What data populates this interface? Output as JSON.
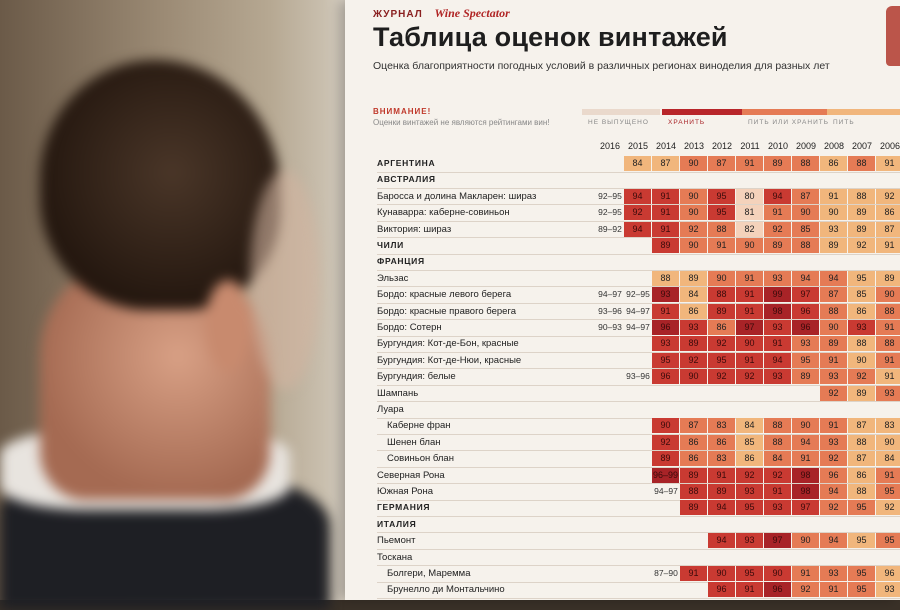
{
  "poster": {
    "header": "ЖУРНАЛ",
    "brand": "Wine Spectator",
    "title": "Таблица оценок винтажей",
    "subtitle": "Оценка благоприятности погодных условий в различных регионах виноделия для разных лет",
    "warning_title": "ВНИМАНИЕ!",
    "warning_note": "Оценки винтажей не являются рейтингами вин!",
    "legend": [
      {
        "label": "НЕ ВЫПУЩЕНО",
        "color": "#ead9cc"
      },
      {
        "label": "ХРАНИТЬ",
        "color": "#b8262a"
      },
      {
        "label": "ПИТЬ ИЛИ ХРАНИТЬ",
        "color": "#e57b55"
      },
      {
        "label": "ПИТЬ",
        "color": "#f1b67c"
      }
    ]
  },
  "colors": {
    "store": "#c93a32",
    "store_dark": "#a82327",
    "mixed": "#e57b55",
    "drink": "#f1b67c",
    "light": "#f4d2bb"
  },
  "table": {
    "years": [
      "2016",
      "2015",
      "2014",
      "2013",
      "2012",
      "2011",
      "2010",
      "2009",
      "2008",
      "2007",
      "2006",
      "20"
    ],
    "rows": [
      {
        "label": "АРГЕНТИНА",
        "type": "section",
        "cells": [
          "",
          "84",
          "87",
          "90",
          "87",
          "91",
          "89",
          "88",
          "86",
          "88",
          "91",
          "9"
        ],
        "tones": [
          "",
          "d",
          "d",
          "m",
          "m",
          "m",
          "m",
          "m",
          "d",
          "m",
          "d",
          "d"
        ]
      },
      {
        "label": "АВСТРАЛИЯ",
        "type": "section",
        "cells": [],
        "tones": []
      },
      {
        "label": "Баросса и долина Макларен: шираз",
        "type": "item",
        "cells": [
          "92–95",
          "94",
          "91",
          "90",
          "95",
          "80",
          "94",
          "87",
          "91",
          "88",
          "92",
          "9"
        ],
        "tones": [
          "",
          "s",
          "s",
          "m",
          "s",
          "l",
          "s",
          "m",
          "d",
          "d",
          "d",
          "d"
        ]
      },
      {
        "label": "Кунаварра: каберне-совиньон",
        "type": "item",
        "cells": [
          "92–95",
          "92",
          "91",
          "90",
          "95",
          "81",
          "91",
          "90",
          "90",
          "89",
          "86",
          "9"
        ],
        "tones": [
          "",
          "s",
          "s",
          "m",
          "s",
          "l",
          "m",
          "m",
          "d",
          "d",
          "d",
          "d"
        ]
      },
      {
        "label": "Виктория: шираз",
        "type": "item",
        "cells": [
          "89–92",
          "94",
          "91",
          "92",
          "88",
          "82",
          "92",
          "85",
          "93",
          "89",
          "87",
          "9"
        ],
        "tones": [
          "",
          "s",
          "s",
          "m",
          "m",
          "l",
          "m",
          "m",
          "d",
          "d",
          "d",
          "d"
        ]
      },
      {
        "label": "ЧИЛИ",
        "type": "section",
        "cells": [
          "",
          "",
          "89",
          "90",
          "91",
          "90",
          "89",
          "88",
          "89",
          "92",
          "91",
          "9"
        ],
        "tones": [
          "",
          "",
          "s",
          "m",
          "m",
          "m",
          "m",
          "m",
          "d",
          "d",
          "d",
          "d"
        ]
      },
      {
        "label": "ФРАНЦИЯ",
        "type": "section",
        "cells": [],
        "tones": []
      },
      {
        "label": "Эльзас",
        "type": "item",
        "cells": [
          "",
          "",
          "88",
          "89",
          "90",
          "91",
          "93",
          "94",
          "94",
          "95",
          "89",
          ""
        ],
        "tones": [
          "",
          "",
          "d",
          "d",
          "m",
          "m",
          "m",
          "m",
          "m",
          "d",
          "d",
          ""
        ]
      },
      {
        "label": "Бордо: красные левого берега",
        "type": "item",
        "cells": [
          "94–97",
          "92–95",
          "93",
          "84",
          "88",
          "91",
          "99",
          "97",
          "87",
          "85",
          "90",
          "9"
        ],
        "tones": [
          "",
          "",
          "x",
          "d",
          "s",
          "s",
          "x",
          "s",
          "m",
          "d",
          "m",
          "m"
        ]
      },
      {
        "label": "Бордо: красные правого берега",
        "type": "item",
        "cells": [
          "93–96",
          "94–97",
          "91",
          "86",
          "89",
          "91",
          "98",
          "96",
          "88",
          "86",
          "88",
          "9"
        ],
        "tones": [
          "",
          "",
          "s",
          "d",
          "s",
          "s",
          "x",
          "s",
          "m",
          "d",
          "m",
          "m"
        ]
      },
      {
        "label": "Бордо: Сотерн",
        "type": "item",
        "cells": [
          "90–93",
          "94–97",
          "96",
          "93",
          "86",
          "97",
          "93",
          "96",
          "90",
          "93",
          "91",
          "9"
        ],
        "tones": [
          "",
          "",
          "x",
          "s",
          "m",
          "x",
          "s",
          "x",
          "m",
          "s",
          "m",
          "m"
        ]
      },
      {
        "label": "Бургундия: Кот-де-Бон, красные",
        "type": "item",
        "cells": [
          "",
          "",
          "93",
          "89",
          "92",
          "90",
          "91",
          "93",
          "89",
          "88",
          "88",
          "9"
        ],
        "tones": [
          "",
          "",
          "s",
          "s",
          "s",
          "s",
          "s",
          "m",
          "m",
          "d",
          "m",
          "m"
        ]
      },
      {
        "label": "Бургундия: Кот-де-Нюи, красные",
        "type": "item",
        "cells": [
          "",
          "",
          "95",
          "92",
          "95",
          "91",
          "94",
          "95",
          "91",
          "90",
          "91",
          "9"
        ],
        "tones": [
          "",
          "",
          "s",
          "s",
          "s",
          "s",
          "s",
          "m",
          "m",
          "d",
          "m",
          "m"
        ]
      },
      {
        "label": "Бургундия: белые",
        "type": "item",
        "cells": [
          "",
          "93–96",
          "96",
          "90",
          "92",
          "92",
          "93",
          "89",
          "93",
          "92",
          "91",
          "9"
        ],
        "tones": [
          "",
          "",
          "s",
          "s",
          "s",
          "s",
          "s",
          "m",
          "m",
          "m",
          "d",
          "m"
        ]
      },
      {
        "label": "Шампань",
        "type": "item",
        "cells": [
          "",
          "",
          "",
          "",
          "",
          "",
          "",
          "",
          "92",
          "89",
          "93",
          "9"
        ],
        "tones": [
          "",
          "",
          "",
          "",
          "",
          "",
          "",
          "",
          "m",
          "d",
          "m",
          "m"
        ]
      },
      {
        "label": "Луара",
        "type": "item",
        "cells": [],
        "tones": []
      },
      {
        "label": "Каберне фран",
        "type": "sub",
        "cells": [
          "",
          "",
          "90",
          "87",
          "83",
          "84",
          "88",
          "90",
          "91",
          "87",
          "83",
          "84"
        ],
        "tones": [
          "",
          "",
          "s",
          "m",
          "m",
          "d",
          "m",
          "m",
          "m",
          "d",
          "d",
          "d"
        ]
      },
      {
        "label": "Шенен блан",
        "type": "sub",
        "cells": [
          "",
          "",
          "92",
          "86",
          "86",
          "85",
          "88",
          "94",
          "93",
          "88",
          "90",
          "84"
        ],
        "tones": [
          "",
          "",
          "s",
          "m",
          "m",
          "d",
          "m",
          "m",
          "m",
          "d",
          "d",
          "d"
        ]
      },
      {
        "label": "Совиньон блан",
        "type": "sub",
        "cells": [
          "",
          "",
          "89",
          "86",
          "83",
          "86",
          "84",
          "91",
          "92",
          "87",
          "84",
          "85"
        ],
        "tones": [
          "",
          "",
          "s",
          "m",
          "m",
          "d",
          "m",
          "m",
          "m",
          "d",
          "d",
          "d"
        ]
      },
      {
        "label": "Северная Рона",
        "type": "item",
        "cells": [
          "",
          "",
          "96–99",
          "89",
          "91",
          "92",
          "92",
          "98",
          "96",
          "86",
          "91",
          "92"
        ],
        "tones": [
          "",
          "",
          "x",
          "s",
          "s",
          "s",
          "s",
          "x",
          "m",
          "d",
          "m",
          "m"
        ]
      },
      {
        "label": "Южная Рона",
        "type": "item",
        "cells": [
          "",
          "",
          "94–97",
          "88",
          "89",
          "93",
          "91",
          "98",
          "94",
          "88",
          "95",
          "93"
        ],
        "tones": [
          "",
          "",
          "",
          "s",
          "s",
          "s",
          "s",
          "x",
          "m",
          "d",
          "m",
          "m"
        ]
      },
      {
        "label": "ГЕРМАНИЯ",
        "type": "section",
        "cells": [
          "",
          "",
          "",
          "89",
          "94",
          "95",
          "93",
          "97",
          "92",
          "95",
          "92",
          "9"
        ],
        "tones": [
          "",
          "",
          "",
          "s",
          "s",
          "s",
          "s",
          "s",
          "m",
          "m",
          "d",
          "m"
        ]
      },
      {
        "label": "ИТАЛИЯ",
        "type": "section",
        "cells": [],
        "tones": []
      },
      {
        "label": "Пьемонт",
        "type": "item",
        "cells": [
          "",
          "",
          "",
          "",
          "94",
          "93",
          "97",
          "90",
          "94",
          "95",
          "95",
          ""
        ],
        "tones": [
          "",
          "",
          "",
          "",
          "s",
          "s",
          "x",
          "m",
          "m",
          "d",
          "m",
          ""
        ]
      },
      {
        "label": "Тоскана",
        "type": "item",
        "cells": [],
        "tones": []
      },
      {
        "label": "Болгери, Маремма",
        "type": "sub",
        "cells": [
          "",
          "",
          "87–90",
          "91",
          "90",
          "95",
          "90",
          "91",
          "93",
          "95",
          "96",
          "9"
        ],
        "tones": [
          "",
          "",
          "",
          "s",
          "s",
          "s",
          "s",
          "m",
          "m",
          "m",
          "d",
          "m"
        ]
      },
      {
        "label": "Брунелло ди Монтальчино",
        "type": "sub",
        "cells": [
          "",
          "",
          "",
          "",
          "96",
          "91",
          "96",
          "92",
          "91",
          "95",
          "93",
          "9"
        ],
        "tones": [
          "",
          "",
          "",
          "",
          "s",
          "s",
          "x",
          "m",
          "m",
          "m",
          "d",
          "m"
        ]
      }
    ]
  }
}
